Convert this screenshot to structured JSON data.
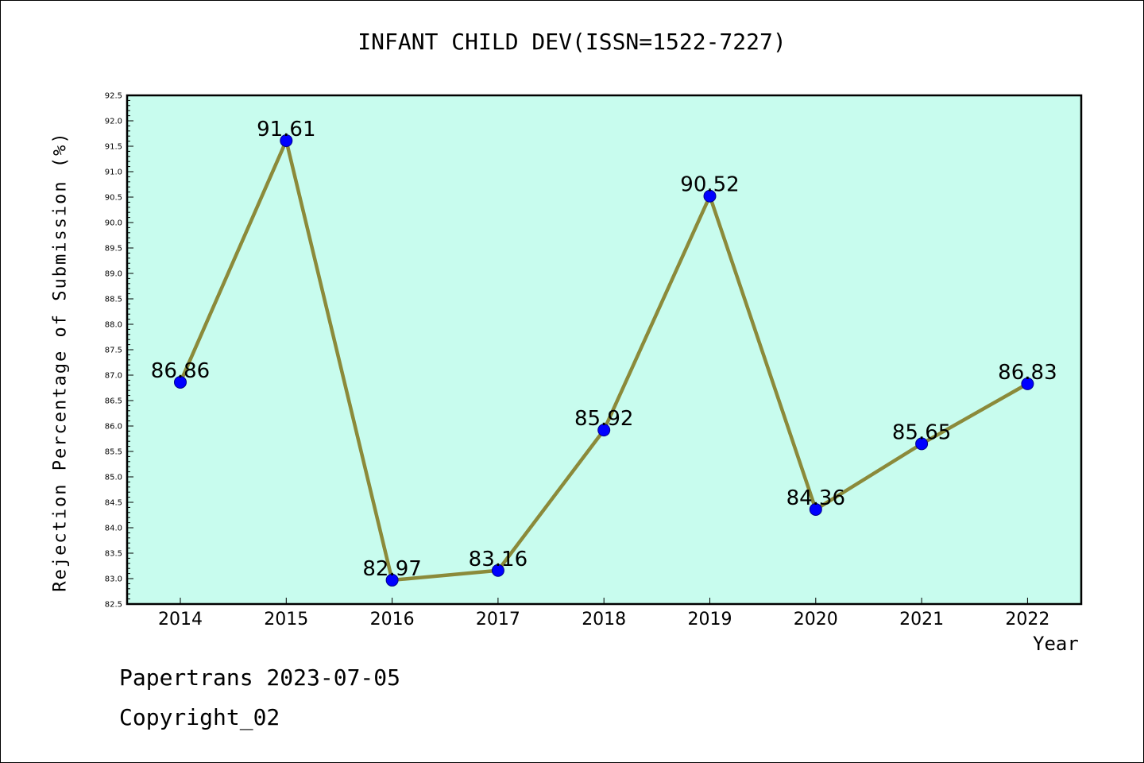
{
  "chart_data": {
    "type": "line",
    "title": "INFANT CHILD DEV(ISSN=1522-7227)",
    "xlabel": "Year",
    "ylabel": "Rejection Percentage of Submission (%)",
    "categories": [
      "2014",
      "2015",
      "2016",
      "2017",
      "2018",
      "2019",
      "2020",
      "2021",
      "2022"
    ],
    "values": [
      86.86,
      91.61,
      82.97,
      83.16,
      85.92,
      90.52,
      84.36,
      85.65,
      86.83
    ],
    "data_labels": [
      "86.86",
      "91.61",
      "82.97",
      "83.16",
      "85.92",
      "90.52",
      "84.36",
      "85.65",
      "86.83"
    ],
    "ylim": [
      82.5,
      92.5
    ],
    "yticks": [
      "82.5",
      "83.0",
      "83.5",
      "84.0",
      "84.5",
      "85.0",
      "85.5",
      "86.0",
      "86.5",
      "87.0",
      "87.5",
      "88.0",
      "88.5",
      "89.0",
      "89.5",
      "90.0",
      "90.5",
      "91.0",
      "91.5",
      "92.0",
      "92.5"
    ],
    "colors": {
      "plot_background": "#c8fcee",
      "line": "#8b8a3a",
      "marker": "#0000ff"
    },
    "grid": false
  },
  "footer": {
    "line1": "Papertrans 2023-07-05",
    "line2": "Copyright_02"
  }
}
